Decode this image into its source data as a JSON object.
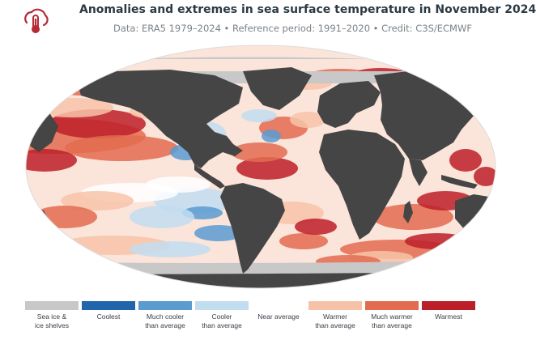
{
  "title": "Anomalies and extremes in sea surface temperature in November 2024",
  "subtitle": "Data: ERA5 1979–2024 • Reference period: 1991–2020 • Credit: C3S/ECMWF",
  "logo_icon": "thermometer-cloud-icon",
  "colors": {
    "land": "#454545",
    "ocean_bg": "#fbe4d9",
    "sea_ice": "#c8c8c8"
  },
  "legend": [
    {
      "label": "Sea ice &\nice shelves",
      "color": "#c8c8c8"
    },
    {
      "label": "Coolest",
      "color": "#2166ac"
    },
    {
      "label": "Much cooler\nthan average",
      "color": "#5b9bd0"
    },
    {
      "label": "Cooler\nthan average",
      "color": "#c2ddf0"
    },
    {
      "label": "Near average",
      "color": "#ffffff"
    },
    {
      "label": "Warmer\nthan average",
      "color": "#f7c3a8"
    },
    {
      "label": "Much warmer\nthan average",
      "color": "#e36b4f"
    },
    {
      "label": "Warmest",
      "color": "#bd1f28"
    }
  ]
}
